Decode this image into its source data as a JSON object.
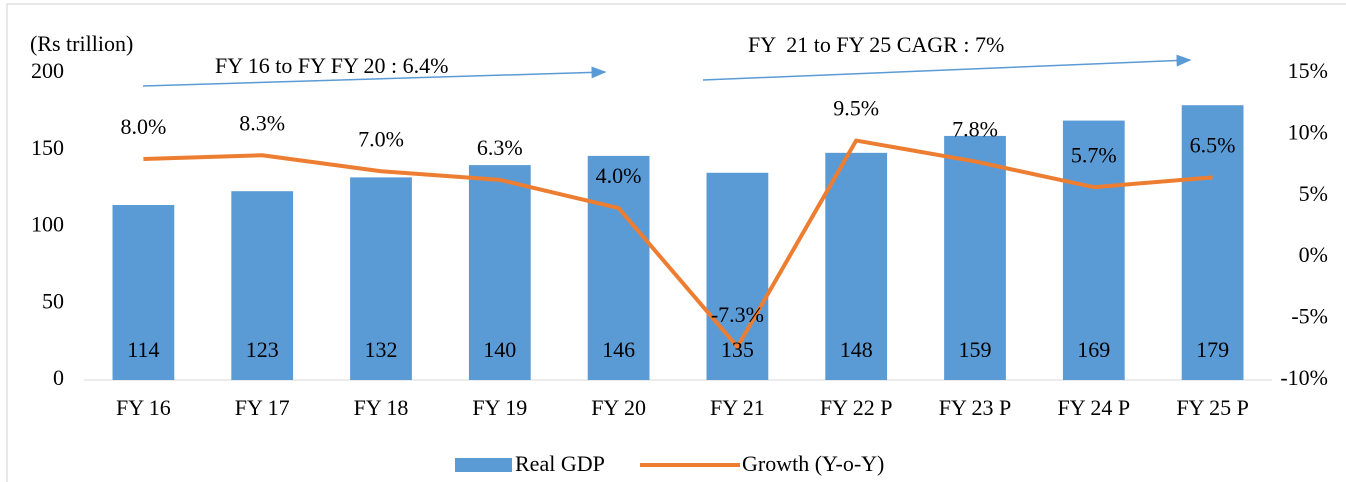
{
  "chart_data": {
    "type": "bar_line",
    "y_label": "(Rs trillion)",
    "categories": [
      "FY 16",
      "FY 17",
      "FY 18",
      "FY 19",
      "FY 20",
      "FY 21",
      "FY 22 P",
      "FY 23 P",
      "FY 24 P",
      "FY 25 P"
    ],
    "series": [
      {
        "name": "Real GDP",
        "type": "bar",
        "color": "#5b9bd5",
        "axis": "y",
        "values": [
          114,
          123,
          132,
          140,
          146,
          135,
          148,
          159,
          169,
          179
        ]
      },
      {
        "name": "Growth (Y-o-Y)",
        "type": "line",
        "color": "#ed7d31",
        "axis": "y2",
        "values": [
          8.0,
          8.3,
          7.0,
          6.3,
          4.0,
          -7.3,
          9.5,
          7.8,
          5.7,
          6.5
        ],
        "value_labels": [
          "8.0%",
          "8.3%",
          "7.0%",
          "6.3%",
          "4.0%",
          "-7.3%",
          "9.5%",
          "7.8%",
          "5.7%",
          "6.5%"
        ]
      }
    ],
    "ylim": [
      0,
      200
    ],
    "yticks": [
      0,
      50,
      100,
      150,
      200
    ],
    "y2lim": [
      -10,
      15
    ],
    "y2ticks": [
      {
        "value": -10,
        "label": "-10%"
      },
      {
        "value": -5,
        "label": "-5%"
      },
      {
        "value": 0,
        "label": "0%"
      },
      {
        "value": 5,
        "label": "5%"
      },
      {
        "value": 10,
        "label": "10%"
      },
      {
        "value": 15,
        "label": "15%"
      }
    ],
    "annotations": [
      "FY 16 to FY FY 20 : 6.4%",
      "FY  21 to FY 25 CAGR : 7%"
    ],
    "legend": "bottom"
  }
}
